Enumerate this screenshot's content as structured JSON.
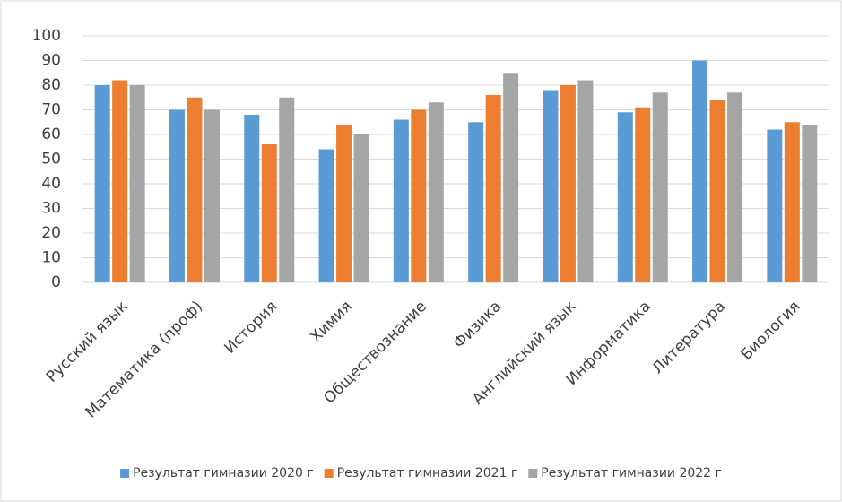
{
  "chart_data": {
    "type": "bar",
    "categories": [
      "Русский язык",
      "Математика (проф)",
      "История",
      "Химия",
      "Обществознание",
      "Физика",
      "Английский язык",
      "Информатика",
      "Литература",
      "Биология"
    ],
    "series": [
      {
        "name": "Результат гимназии 2020 г",
        "color": "#5b9bd5",
        "values": [
          80,
          70,
          68,
          54,
          66,
          65,
          78,
          69,
          90,
          62
        ]
      },
      {
        "name": "Результат гимназии 2021 г",
        "color": "#ed7d31",
        "values": [
          82,
          75,
          56,
          64,
          70,
          76,
          80,
          71,
          74,
          65
        ]
      },
      {
        "name": "Результат гимназии 2022 г",
        "color": "#a5a5a5",
        "values": [
          80,
          70,
          75,
          60,
          73,
          85,
          82,
          77,
          77,
          64
        ]
      }
    ],
    "ylim": [
      0,
      100
    ],
    "yticks": [
      0,
      10,
      20,
      30,
      40,
      50,
      60,
      70,
      80,
      90,
      100
    ],
    "grid": true,
    "legend": "bottom"
  }
}
